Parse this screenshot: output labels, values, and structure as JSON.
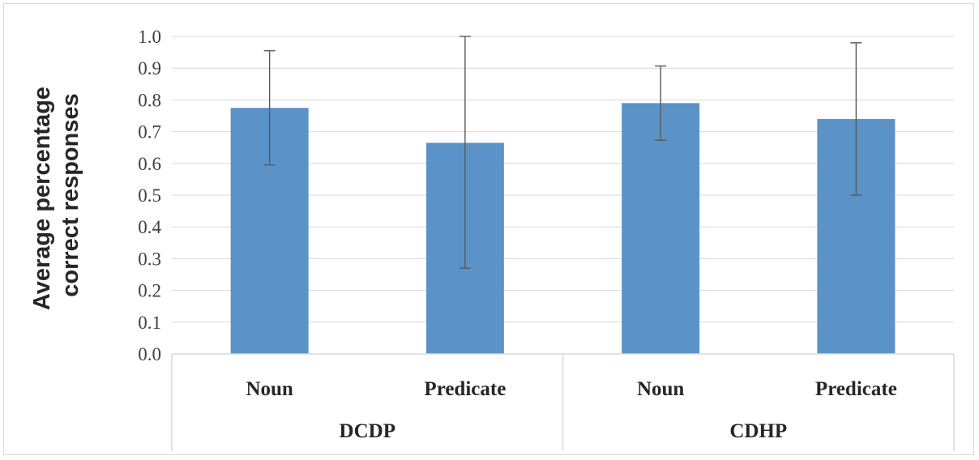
{
  "chart_data": {
    "type": "bar",
    "title": "",
    "ylabel": [
      "Average percentage",
      "correct responses"
    ],
    "xlabel": "",
    "ylim": [
      0,
      1.0
    ],
    "y_ticks": [
      "0.0",
      "0.1",
      "0.2",
      "0.3",
      "0.4",
      "0.5",
      "0.6",
      "0.7",
      "0.8",
      "0.9",
      "1.0"
    ],
    "groups": [
      {
        "label": "DCDP",
        "categories": [
          "Noun",
          "Predicate"
        ]
      },
      {
        "label": "CDHP",
        "categories": [
          "Noun",
          "Predicate"
        ]
      }
    ],
    "categories": [
      "Noun",
      "Predicate",
      "Noun",
      "Predicate"
    ],
    "values": [
      0.775,
      0.665,
      0.79,
      0.74
    ],
    "error_low": [
      0.595,
      0.27,
      0.673,
      0.5
    ],
    "error_high": [
      0.955,
      1.0,
      0.907,
      0.98
    ],
    "bar_color": "#5b93c8",
    "error_bar_color": "#595959",
    "grid": true,
    "legend": "none"
  }
}
